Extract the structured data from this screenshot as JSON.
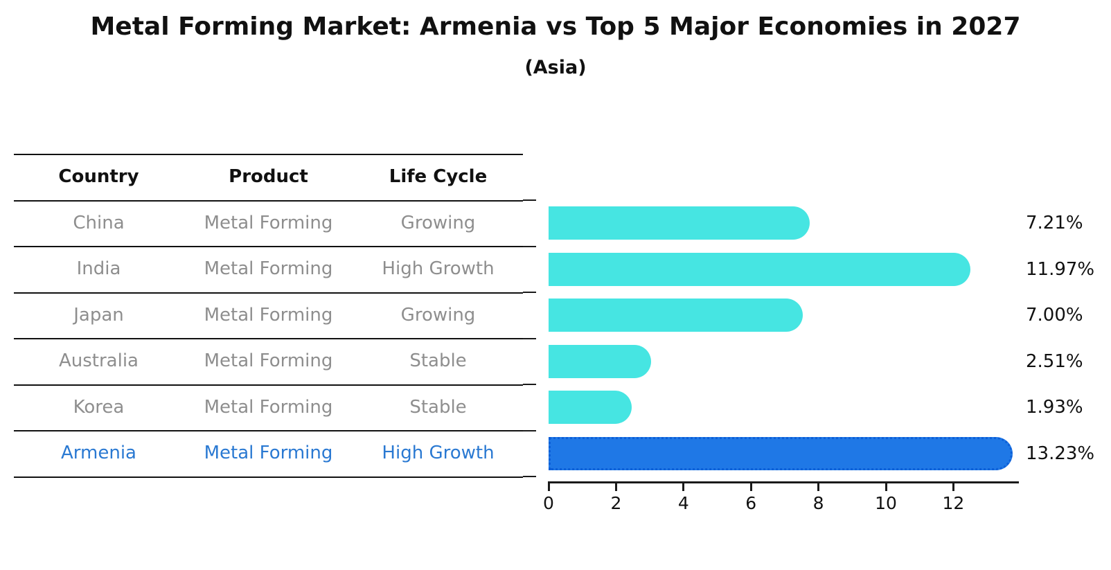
{
  "title": "Metal Forming Market: Armenia vs Top 5 Major Economies in 2027",
  "subtitle": "(Asia)",
  "table": {
    "headers": [
      "Country",
      "Product",
      "Life Cycle"
    ],
    "rows": [
      {
        "country": "China",
        "product": "Metal Forming",
        "life_cycle": "Growing",
        "highlight": false
      },
      {
        "country": "India",
        "product": "Metal Forming",
        "life_cycle": "High Growth",
        "highlight": false
      },
      {
        "country": "Japan",
        "product": "Metal Forming",
        "life_cycle": "Growing",
        "highlight": false
      },
      {
        "country": "Australia",
        "product": "Metal Forming",
        "life_cycle": "Stable",
        "highlight": false
      },
      {
        "country": "Korea",
        "product": "Metal Forming",
        "life_cycle": "Stable",
        "highlight": false
      },
      {
        "country": "Armenia",
        "product": "Metal Forming",
        "life_cycle": "High Growth",
        "highlight": true
      }
    ]
  },
  "chart_data": {
    "type": "bar",
    "orientation": "horizontal",
    "title": "Metal Forming Market: Armenia vs Top 5 Major Economies in 2027",
    "subtitle": "(Asia)",
    "categories": [
      "China",
      "India",
      "Japan",
      "Australia",
      "Korea",
      "Armenia"
    ],
    "values": [
      7.21,
      11.97,
      7.0,
      2.51,
      1.93,
      13.23
    ],
    "labels": [
      "7.21%",
      "11.97%",
      "7.00%",
      "2.51%",
      "1.93%",
      "13.23%"
    ],
    "unit": "%",
    "xticks": [
      0,
      2,
      4,
      6,
      8,
      10,
      12
    ],
    "xlim": [
      0,
      13.95
    ],
    "grid": false,
    "legend": false,
    "highlight_index": 5
  },
  "colors": {
    "bar": "#46E5E2",
    "highlight_bar": "#1F78E6",
    "highlight_border": "#0C5FD8",
    "highlight_text": "#2A79D2",
    "row_text": "#8E8E8E",
    "header_text": "#111111",
    "axis": "#1A1A1A"
  }
}
